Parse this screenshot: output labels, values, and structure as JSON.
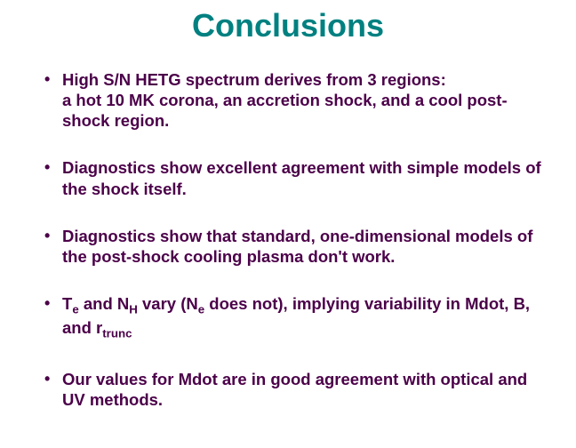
{
  "title": "Conclusions",
  "title_color": "#008080",
  "text_color": "#4b0049",
  "background_color": "#ffffff",
  "bullets": [
    {
      "line1": "High S/N HETG spectrum derives from  3 regions:",
      "line2": "a hot 10 MK corona, an accretion shock, and a cool post-shock region."
    },
    {
      "line1": "Diagnostics show excellent agreement with simple models of the shock itself."
    },
    {
      "line1": "Diagnostics show that standard, one-dimensional models of the post-shock cooling plasma don't work."
    },
    {
      "html": "T<sub>e</sub> and N<sub>H</sub> vary (N<sub>e</sub> does not), implying variability in Mdot, B, and r<sub>trunc</sub>"
    },
    {
      "line1": "Our values for Mdot are in good agreement with optical and UV methods."
    }
  ]
}
